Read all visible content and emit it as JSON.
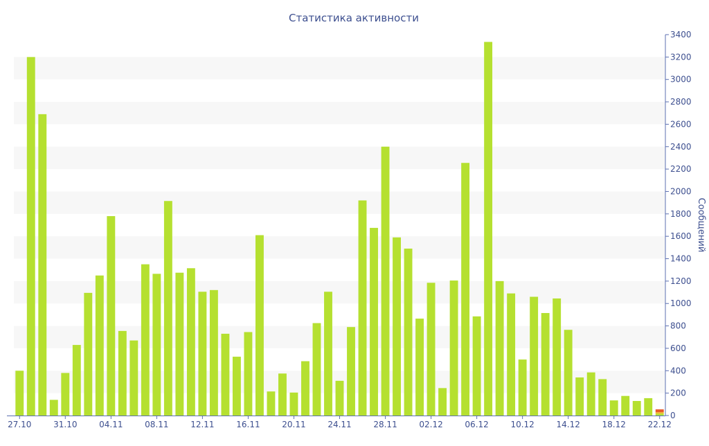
{
  "chart_data": {
    "type": "bar",
    "title": "Статистика активности",
    "xlabel": "",
    "ylabel": "Сообщений",
    "ylim": [
      0,
      3400
    ],
    "yticks": [
      0,
      200,
      400,
      600,
      800,
      1000,
      1200,
      1400,
      1600,
      1800,
      2000,
      2200,
      2400,
      2600,
      2800,
      3000,
      3200,
      3400
    ],
    "y_axis_side": "right",
    "grid": "alternating horizontal bands",
    "legend": "none",
    "x_tick_labels": [
      "27.10",
      "31.10",
      "04.11",
      "08.11",
      "12.11",
      "16.11",
      "20.11",
      "24.11",
      "28.11",
      "02.12",
      "06.12",
      "10.12",
      "14.12",
      "18.12",
      "22.12"
    ],
    "x_tick_every": 4,
    "categories": [
      "27.10",
      "28.10",
      "29.10",
      "30.10",
      "31.10",
      "01.11",
      "02.11",
      "03.11",
      "04.11",
      "05.11",
      "06.11",
      "07.11",
      "08.11",
      "09.11",
      "10.11",
      "11.11",
      "12.11",
      "13.11",
      "14.11",
      "15.11",
      "16.11",
      "17.11",
      "18.11",
      "19.11",
      "20.11",
      "21.11",
      "22.11",
      "23.11",
      "24.11",
      "25.11",
      "26.11",
      "27.11",
      "28.11",
      "29.11",
      "30.11",
      "01.12",
      "02.12",
      "03.12",
      "04.12",
      "05.12",
      "06.12",
      "07.12",
      "08.12",
      "09.12",
      "10.12",
      "11.12",
      "12.12",
      "13.12",
      "14.12",
      "15.12",
      "16.12",
      "17.12",
      "18.12",
      "19.12",
      "20.12",
      "21.12",
      "22.12"
    ],
    "values": [
      400,
      3200,
      2690,
      140,
      380,
      630,
      1095,
      1250,
      1780,
      755,
      670,
      1350,
      1265,
      1915,
      1275,
      1315,
      1105,
      1120,
      730,
      525,
      745,
      1610,
      215,
      375,
      205,
      485,
      825,
      1105,
      310,
      790,
      1920,
      1675,
      2400,
      1590,
      1490,
      865,
      1185,
      245,
      1205,
      2255,
      885,
      3335,
      1200,
      1090,
      500,
      1060,
      915,
      1045,
      765,
      340,
      385,
      325,
      135,
      175,
      130,
      155,
      55
    ],
    "colors": {
      "bar": "#b5e030",
      "band": "#f7f7f7",
      "text": "#3d4f8f",
      "axis": "#5b6fb0",
      "last_bar_top": "#e85a2a",
      "last_bar_mid": "#f0b030"
    }
  }
}
